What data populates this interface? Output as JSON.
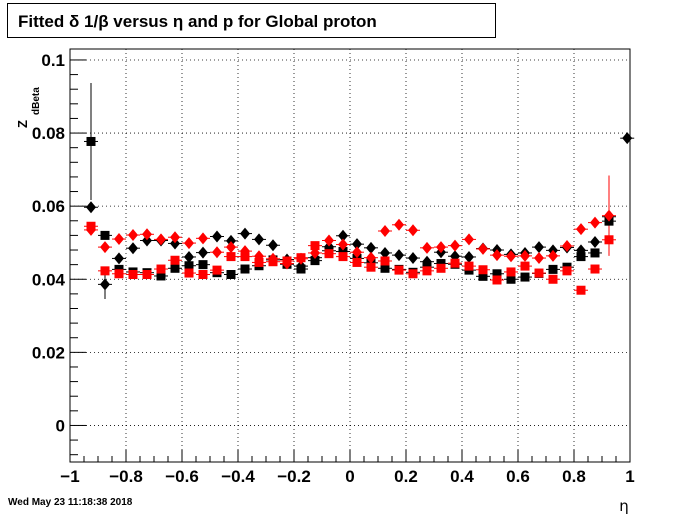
{
  "title": "Fitted δ 1/β versus η and p for Global proton",
  "timestamp": "Wed May 23 11:18:38 2018",
  "chart_data": {
    "type": "scatter",
    "title": "Fitted δ 1/β versus η and p for Global proton",
    "xlabel": "η",
    "ylabel": "Z",
    "ylabel_sub": "dBeta",
    "xlim": [
      -1,
      1
    ],
    "ylim": [
      -0.01,
      0.103
    ],
    "grid": true,
    "x_ticks": [
      -1,
      -0.8,
      -0.6,
      -0.4,
      -0.2,
      0,
      0.2,
      0.4,
      0.6,
      0.8,
      1
    ],
    "x_tick_labels": [
      "−1",
      "−0.8",
      "−0.6",
      "−0.4",
      "−0.2",
      "0",
      "0.2",
      "0.4",
      "0.6",
      "0.8",
      "1"
    ],
    "y_ticks": [
      0,
      0.02,
      0.04,
      0.06,
      0.08,
      0.1
    ],
    "y_tick_labels": [
      "0",
      "0.02",
      "0.04",
      "0.06",
      "0.08",
      "0.1"
    ],
    "colors": {
      "black": "#000000",
      "red": "#ff0000"
    },
    "series": [
      {
        "marker": "square",
        "color": "#000000",
        "points": [
          {
            "x": -0.925,
            "y": 0.0777,
            "err": 0.016
          },
          {
            "x": -0.875,
            "y": 0.052,
            "err": 0.0
          },
          {
            "x": -0.825,
            "y": 0.0427,
            "err": 0.0
          },
          {
            "x": -0.775,
            "y": 0.042,
            "err": 0.0
          },
          {
            "x": -0.725,
            "y": 0.0418,
            "err": 0.0
          },
          {
            "x": -0.675,
            "y": 0.0409,
            "err": 0.0
          },
          {
            "x": -0.625,
            "y": 0.043,
            "err": 0.0
          },
          {
            "x": -0.575,
            "y": 0.0437,
            "err": 0.0
          },
          {
            "x": -0.525,
            "y": 0.044,
            "err": 0.0
          },
          {
            "x": -0.475,
            "y": 0.0418,
            "err": 0.0
          },
          {
            "x": -0.425,
            "y": 0.0413,
            "err": 0.0
          },
          {
            "x": -0.375,
            "y": 0.0428,
            "err": 0.0
          },
          {
            "x": -0.325,
            "y": 0.0437,
            "err": 0.0
          },
          {
            "x": -0.275,
            "y": 0.0453,
            "err": 0.0
          },
          {
            "x": -0.225,
            "y": 0.0441,
            "err": 0.0
          },
          {
            "x": -0.175,
            "y": 0.0428,
            "err": 0.0
          },
          {
            "x": -0.125,
            "y": 0.0451,
            "err": 0.0
          },
          {
            "x": -0.075,
            "y": 0.0478,
            "err": 0.0
          },
          {
            "x": -0.025,
            "y": 0.0476,
            "err": 0.0
          },
          {
            "x": 0.025,
            "y": 0.0457,
            "err": 0.0
          },
          {
            "x": 0.075,
            "y": 0.0445,
            "err": 0.0
          },
          {
            "x": 0.125,
            "y": 0.043,
            "err": 0.0
          },
          {
            "x": 0.175,
            "y": 0.0427,
            "err": 0.0
          },
          {
            "x": 0.225,
            "y": 0.0419,
            "err": 0.0
          },
          {
            "x": 0.275,
            "y": 0.0433,
            "err": 0.0
          },
          {
            "x": 0.325,
            "y": 0.0443,
            "err": 0.0
          },
          {
            "x": 0.375,
            "y": 0.0441,
            "err": 0.0
          },
          {
            "x": 0.425,
            "y": 0.0425,
            "err": 0.0
          },
          {
            "x": 0.475,
            "y": 0.0408,
            "err": 0.0
          },
          {
            "x": 0.525,
            "y": 0.0415,
            "err": 0.0
          },
          {
            "x": 0.575,
            "y": 0.04,
            "err": 0.0
          },
          {
            "x": 0.625,
            "y": 0.0406,
            "err": 0.0
          },
          {
            "x": 0.675,
            "y": 0.0416,
            "err": 0.0
          },
          {
            "x": 0.725,
            "y": 0.0427,
            "err": 0.0
          },
          {
            "x": 0.775,
            "y": 0.0433,
            "err": 0.0
          },
          {
            "x": 0.825,
            "y": 0.0462,
            "err": 0.0
          },
          {
            "x": 0.875,
            "y": 0.0472,
            "err": 0.0
          },
          {
            "x": 0.925,
            "y": 0.0559,
            "err": 0.0
          }
        ]
      },
      {
        "marker": "diamond",
        "color": "#000000",
        "points": [
          {
            "x": -0.925,
            "y": 0.0597,
            "err": 0.0
          },
          {
            "x": -0.875,
            "y": 0.0386,
            "err": 0.004
          },
          {
            "x": -0.825,
            "y": 0.0457,
            "err": 0.0
          },
          {
            "x": -0.775,
            "y": 0.0485,
            "err": 0.0
          },
          {
            "x": -0.725,
            "y": 0.0506,
            "err": 0.0
          },
          {
            "x": -0.675,
            "y": 0.0506,
            "err": 0.0
          },
          {
            "x": -0.625,
            "y": 0.0498,
            "err": 0.0
          },
          {
            "x": -0.575,
            "y": 0.0461,
            "err": 0.0
          },
          {
            "x": -0.525,
            "y": 0.0473,
            "err": 0.0
          },
          {
            "x": -0.475,
            "y": 0.0517,
            "err": 0.0
          },
          {
            "x": -0.425,
            "y": 0.0505,
            "err": 0.0
          },
          {
            "x": -0.375,
            "y": 0.0525,
            "err": 0.0
          },
          {
            "x": -0.325,
            "y": 0.0509,
            "err": 0.0
          },
          {
            "x": -0.275,
            "y": 0.0493,
            "err": 0.0
          },
          {
            "x": -0.225,
            "y": 0.0454,
            "err": 0.0
          },
          {
            "x": -0.175,
            "y": 0.0436,
            "err": 0.0
          },
          {
            "x": -0.125,
            "y": 0.0459,
            "err": 0.0
          },
          {
            "x": -0.075,
            "y": 0.0489,
            "err": 0.0
          },
          {
            "x": -0.025,
            "y": 0.0519,
            "err": 0.0
          },
          {
            "x": 0.025,
            "y": 0.0496,
            "err": 0.0
          },
          {
            "x": 0.075,
            "y": 0.0486,
            "err": 0.0
          },
          {
            "x": 0.125,
            "y": 0.0472,
            "err": 0.0
          },
          {
            "x": 0.175,
            "y": 0.0466,
            "err": 0.0
          },
          {
            "x": 0.225,
            "y": 0.0458,
            "err": 0.0
          },
          {
            "x": 0.275,
            "y": 0.0448,
            "err": 0.0
          },
          {
            "x": 0.325,
            "y": 0.0474,
            "err": 0.0
          },
          {
            "x": 0.375,
            "y": 0.0463,
            "err": 0.0
          },
          {
            "x": 0.425,
            "y": 0.0461,
            "err": 0.0
          },
          {
            "x": 0.475,
            "y": 0.0484,
            "err": 0.0
          },
          {
            "x": 0.525,
            "y": 0.048,
            "err": 0.0
          },
          {
            "x": 0.575,
            "y": 0.0468,
            "err": 0.0
          },
          {
            "x": 0.625,
            "y": 0.0472,
            "err": 0.0
          },
          {
            "x": 0.675,
            "y": 0.0488,
            "err": 0.0
          },
          {
            "x": 0.725,
            "y": 0.0479,
            "err": 0.0
          },
          {
            "x": 0.775,
            "y": 0.0487,
            "err": 0.0
          },
          {
            "x": 0.825,
            "y": 0.0479,
            "err": 0.0
          },
          {
            "x": 0.875,
            "y": 0.0502,
            "err": 0.0
          },
          {
            "x": 0.925,
            "y": 0.0571,
            "err": 0.0
          },
          {
            "x": 0.99,
            "y": 0.0786,
            "err": 0.0
          }
        ]
      },
      {
        "marker": "square",
        "color": "#ff0000",
        "points": [
          {
            "x": -0.925,
            "y": 0.0545,
            "err": 0.0
          },
          {
            "x": -0.875,
            "y": 0.0423,
            "err": 0.0
          },
          {
            "x": -0.825,
            "y": 0.0415,
            "err": 0.0
          },
          {
            "x": -0.775,
            "y": 0.0413,
            "err": 0.0
          },
          {
            "x": -0.725,
            "y": 0.0413,
            "err": 0.0
          },
          {
            "x": -0.675,
            "y": 0.0428,
            "err": 0.0
          },
          {
            "x": -0.625,
            "y": 0.0452,
            "err": 0.0
          },
          {
            "x": -0.575,
            "y": 0.0417,
            "err": 0.0
          },
          {
            "x": -0.525,
            "y": 0.0413,
            "err": 0.0
          },
          {
            "x": -0.475,
            "y": 0.0425,
            "err": 0.0
          },
          {
            "x": -0.425,
            "y": 0.0462,
            "err": 0.0
          },
          {
            "x": -0.375,
            "y": 0.0462,
            "err": 0.0
          },
          {
            "x": -0.325,
            "y": 0.0446,
            "err": 0.0
          },
          {
            "x": -0.275,
            "y": 0.0448,
            "err": 0.0
          },
          {
            "x": -0.225,
            "y": 0.045,
            "err": 0.0
          },
          {
            "x": -0.175,
            "y": 0.0459,
            "err": 0.0
          },
          {
            "x": -0.125,
            "y": 0.0492,
            "err": 0.0
          },
          {
            "x": -0.075,
            "y": 0.047,
            "err": 0.0
          },
          {
            "x": -0.025,
            "y": 0.0462,
            "err": 0.0
          },
          {
            "x": 0.025,
            "y": 0.0446,
            "err": 0.0
          },
          {
            "x": 0.075,
            "y": 0.0433,
            "err": 0.0
          },
          {
            "x": 0.125,
            "y": 0.045,
            "err": 0.0
          },
          {
            "x": 0.175,
            "y": 0.0425,
            "err": 0.0
          },
          {
            "x": 0.225,
            "y": 0.0415,
            "err": 0.0
          },
          {
            "x": 0.275,
            "y": 0.0423,
            "err": 0.0
          },
          {
            "x": 0.325,
            "y": 0.043,
            "err": 0.0
          },
          {
            "x": 0.375,
            "y": 0.0444,
            "err": 0.0
          },
          {
            "x": 0.425,
            "y": 0.0436,
            "err": 0.0
          },
          {
            "x": 0.475,
            "y": 0.0426,
            "err": 0.0
          },
          {
            "x": 0.525,
            "y": 0.0398,
            "err": 0.0
          },
          {
            "x": 0.575,
            "y": 0.042,
            "err": 0.0
          },
          {
            "x": 0.625,
            "y": 0.0436,
            "err": 0.0
          },
          {
            "x": 0.675,
            "y": 0.0417,
            "err": 0.0
          },
          {
            "x": 0.725,
            "y": 0.04,
            "err": 0.0
          },
          {
            "x": 0.775,
            "y": 0.0423,
            "err": 0.0
          },
          {
            "x": 0.825,
            "y": 0.037,
            "err": 0.0
          },
          {
            "x": 0.875,
            "y": 0.0428,
            "err": 0.0
          },
          {
            "x": 0.925,
            "y": 0.0508,
            "err": 0.0
          }
        ]
      },
      {
        "marker": "diamond",
        "color": "#ff0000",
        "points": [
          {
            "x": -0.925,
            "y": 0.0535,
            "err": 0.0
          },
          {
            "x": -0.875,
            "y": 0.0488,
            "err": 0.0
          },
          {
            "x": -0.825,
            "y": 0.051,
            "err": 0.0
          },
          {
            "x": -0.775,
            "y": 0.0521,
            "err": 0.0
          },
          {
            "x": -0.725,
            "y": 0.0523,
            "err": 0.0
          },
          {
            "x": -0.675,
            "y": 0.0509,
            "err": 0.0
          },
          {
            "x": -0.625,
            "y": 0.0515,
            "err": 0.0
          },
          {
            "x": -0.575,
            "y": 0.0499,
            "err": 0.0
          },
          {
            "x": -0.525,
            "y": 0.0512,
            "err": 0.0
          },
          {
            "x": -0.475,
            "y": 0.0474,
            "err": 0.0
          },
          {
            "x": -0.425,
            "y": 0.0488,
            "err": 0.0
          },
          {
            "x": -0.375,
            "y": 0.0477,
            "err": 0.0
          },
          {
            "x": -0.325,
            "y": 0.0463,
            "err": 0.0
          },
          {
            "x": -0.275,
            "y": 0.0456,
            "err": 0.0
          },
          {
            "x": -0.225,
            "y": 0.0443,
            "err": 0.0
          },
          {
            "x": -0.175,
            "y": 0.0456,
            "err": 0.0
          },
          {
            "x": -0.125,
            "y": 0.0472,
            "err": 0.0
          },
          {
            "x": -0.075,
            "y": 0.0506,
            "err": 0.0
          },
          {
            "x": -0.025,
            "y": 0.0495,
            "err": 0.0
          },
          {
            "x": 0.025,
            "y": 0.0474,
            "err": 0.0
          },
          {
            "x": 0.075,
            "y": 0.0459,
            "err": 0.0
          },
          {
            "x": 0.125,
            "y": 0.0532,
            "err": 0.0
          },
          {
            "x": 0.175,
            "y": 0.0549,
            "err": 0.0
          },
          {
            "x": 0.225,
            "y": 0.0534,
            "err": 0.0
          },
          {
            "x": 0.275,
            "y": 0.0486,
            "err": 0.0
          },
          {
            "x": 0.325,
            "y": 0.0488,
            "err": 0.0
          },
          {
            "x": 0.375,
            "y": 0.0492,
            "err": 0.0
          },
          {
            "x": 0.425,
            "y": 0.0509,
            "err": 0.0
          },
          {
            "x": 0.475,
            "y": 0.0483,
            "err": 0.0
          },
          {
            "x": 0.525,
            "y": 0.0466,
            "err": 0.0
          },
          {
            "x": 0.575,
            "y": 0.0463,
            "err": 0.0
          },
          {
            "x": 0.625,
            "y": 0.0464,
            "err": 0.0
          },
          {
            "x": 0.675,
            "y": 0.0458,
            "err": 0.0
          },
          {
            "x": 0.725,
            "y": 0.0464,
            "err": 0.0
          },
          {
            "x": 0.775,
            "y": 0.0491,
            "err": 0.0
          },
          {
            "x": 0.825,
            "y": 0.0537,
            "err": 0.0
          },
          {
            "x": 0.875,
            "y": 0.0555,
            "err": 0.0
          },
          {
            "x": 0.925,
            "y": 0.0574,
            "err": 0.011
          }
        ]
      }
    ]
  }
}
